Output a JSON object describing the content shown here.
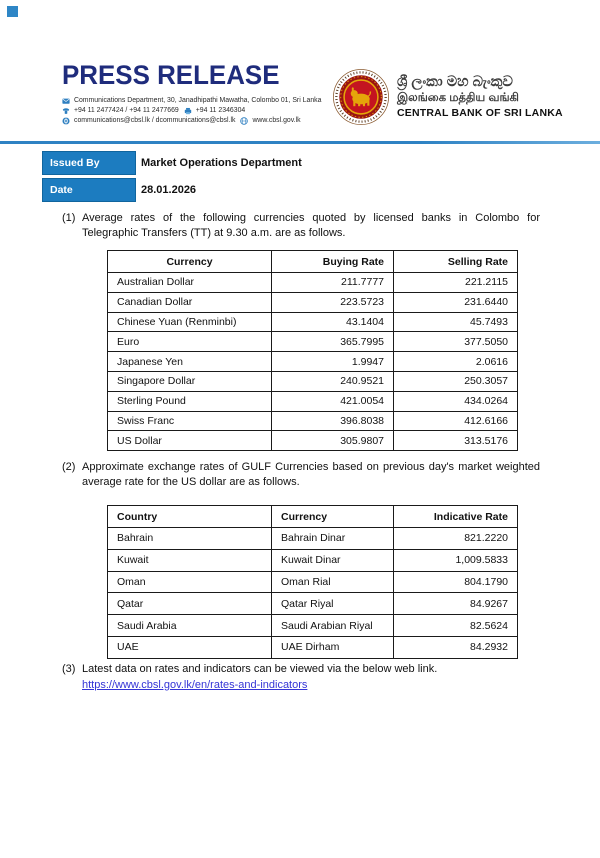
{
  "header": {
    "title": "PRESS RELEASE",
    "contact": {
      "address": "Communications Department, 30, Janadhipathi Mawatha, Colombo 01, Sri Lanka",
      "phones": "+94 11 2477424 / +94 11 2477669",
      "fax": "+94 11  2346304",
      "emails": "communications@cbsl.lk / dcommunications@cbsl.lk",
      "website": "www.cbsl.gov.lk"
    },
    "bank": {
      "name_sinhala": "ශ්‍රී ලංකා මහ බැංකුව",
      "name_tamil": "இலங்கை மத்திய வங்கி",
      "name_english": "CENTRAL BANK OF SRI LANKA"
    }
  },
  "meta": {
    "issued_by_label": "Issued By",
    "issued_by_value": "Market Operations Department",
    "date_label": "Date",
    "date_value": "28.01.2026"
  },
  "items": {
    "item1_number": "(1)",
    "item1_text": "Average rates of the following currencies quoted by licensed banks in Colombo for Telegraphic Transfers (TT) at 9.30 a.m. are as follows.",
    "item2_number": "(2)",
    "item2_text": "Approximate exchange rates of GULF Currencies based on previous day's market weighted average rate for the US dollar are as follows.",
    "item3_number": "(3)",
    "item3_text": "Latest data on rates and indicators can be viewed via the below web link.",
    "item3_link": "https://www.cbsl.gov.lk/en/rates-and-indicators"
  },
  "tt_rates_table": {
    "headers": [
      "Currency",
      "Buying Rate",
      "Selling Rate"
    ],
    "rows": [
      [
        "Australian Dollar",
        "211.7777",
        "221.2115"
      ],
      [
        "Canadian Dollar",
        "223.5723",
        "231.6440"
      ],
      [
        "Chinese Yuan (Renminbi)",
        "43.1404",
        "45.7493"
      ],
      [
        "Euro",
        "365.7995",
        "377.5050"
      ],
      [
        "Japanese Yen",
        "1.9947",
        "2.0616"
      ],
      [
        "Singapore Dollar",
        "240.9521",
        "250.3057"
      ],
      [
        "Sterling Pound",
        "421.0054",
        "434.0264"
      ],
      [
        "Swiss Franc",
        "396.8038",
        "412.6166"
      ],
      [
        "US Dollar",
        "305.9807",
        "313.5176"
      ]
    ]
  },
  "gulf_rates_table": {
    "headers": [
      "Country",
      "Currency",
      "Indicative Rate"
    ],
    "rows": [
      [
        "Bahrain",
        "Bahrain Dinar",
        "821.2220"
      ],
      [
        "Kuwait",
        "Kuwait Dinar",
        "1,009.5833"
      ],
      [
        "Oman",
        "Oman Rial",
        "804.1790"
      ],
      [
        "Qatar",
        "Qatar Riyal",
        "84.9267"
      ],
      [
        "Saudi Arabia",
        "Saudi Arabian Riyal",
        "82.5624"
      ],
      [
        "UAE",
        "UAE Dirham",
        "84.2932"
      ]
    ]
  },
  "colors": {
    "title_navy": "#1f2c7c",
    "accent_blue": "#1c7cc0",
    "rule_blue": "#2e82c3",
    "link_blue": "#3434d6",
    "logo_red": "#c41420",
    "logo_gold": "#e5a50a"
  }
}
